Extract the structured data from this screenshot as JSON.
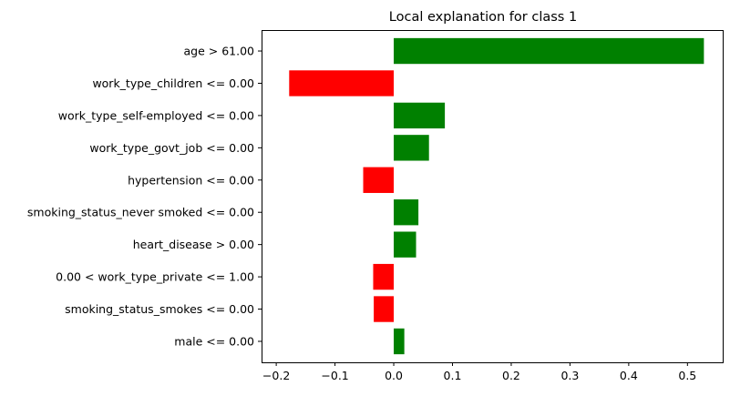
{
  "chart_data": {
    "type": "bar",
    "orientation": "horizontal",
    "title": "Local explanation for class 1",
    "xlabel": "",
    "ylabel": "",
    "xlim": [
      -0.225,
      0.56
    ],
    "xticks": [
      -0.2,
      -0.1,
      0.0,
      0.1,
      0.2,
      0.3,
      0.4,
      0.5
    ],
    "xtick_labels": [
      "−0.2",
      "−0.1",
      "0.0",
      "0.1",
      "0.2",
      "0.3",
      "0.4",
      "0.5"
    ],
    "grid": false,
    "positive_color": "#008000",
    "negative_color": "#ff0000",
    "categories": [
      "age > 61.00",
      "work_type_children <= 0.00",
      "work_type_self-employed <= 0.00",
      "work_type_govt_job <= 0.00",
      "hypertension <= 0.00",
      "smoking_status_never smoked <= 0.00",
      "heart_disease > 0.00",
      "0.00 < work_type_private <= 1.00",
      "smoking_status_smokes <= 0.00",
      "male <= 0.00"
    ],
    "values": [
      0.528,
      -0.178,
      0.087,
      0.06,
      -0.052,
      0.042,
      0.038,
      -0.035,
      -0.034,
      0.018
    ]
  }
}
